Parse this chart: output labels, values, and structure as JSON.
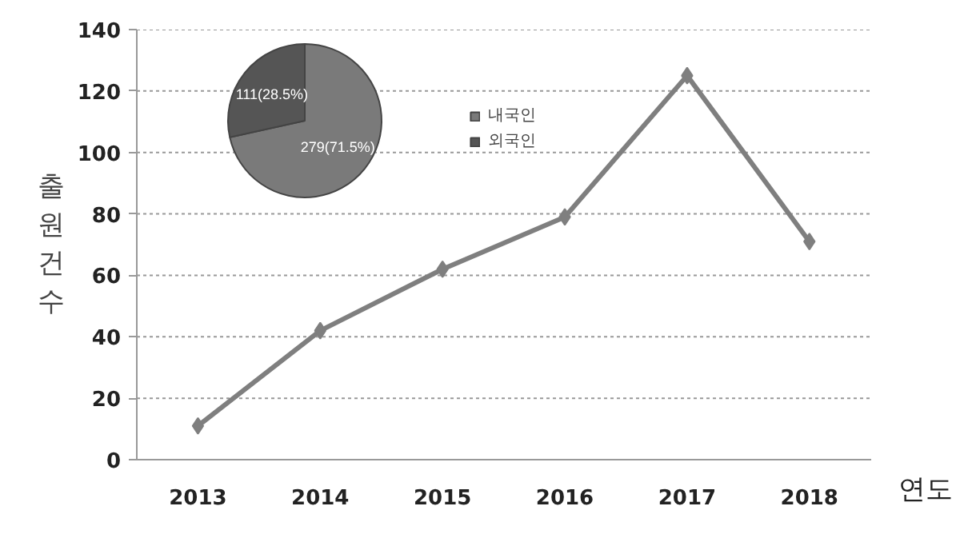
{
  "chart_data": [
    {
      "type": "line",
      "categories": [
        "2013",
        "2014",
        "2015",
        "2016",
        "2017",
        "2018"
      ],
      "xlabel": "연도",
      "ylabel": "출원건수",
      "series": [
        {
          "color": "#7f7f7f",
          "values": [
            11,
            42,
            62,
            79,
            125,
            71
          ]
        }
      ],
      "ylim": [
        0,
        140
      ],
      "yticks": [
        0,
        20,
        40,
        60,
        80,
        100,
        120,
        140
      ],
      "grid": "y",
      "marker": "diamond",
      "line_style": "solid"
    },
    {
      "type": "pie",
      "categories": [
        "내국인",
        "외국인"
      ],
      "values": [
        279,
        111
      ],
      "colors": [
        "#7a7a7a",
        "#555555"
      ],
      "value_labels": [
        "279(71.5%)",
        "111(28.5%)"
      ],
      "legend": "right"
    }
  ]
}
